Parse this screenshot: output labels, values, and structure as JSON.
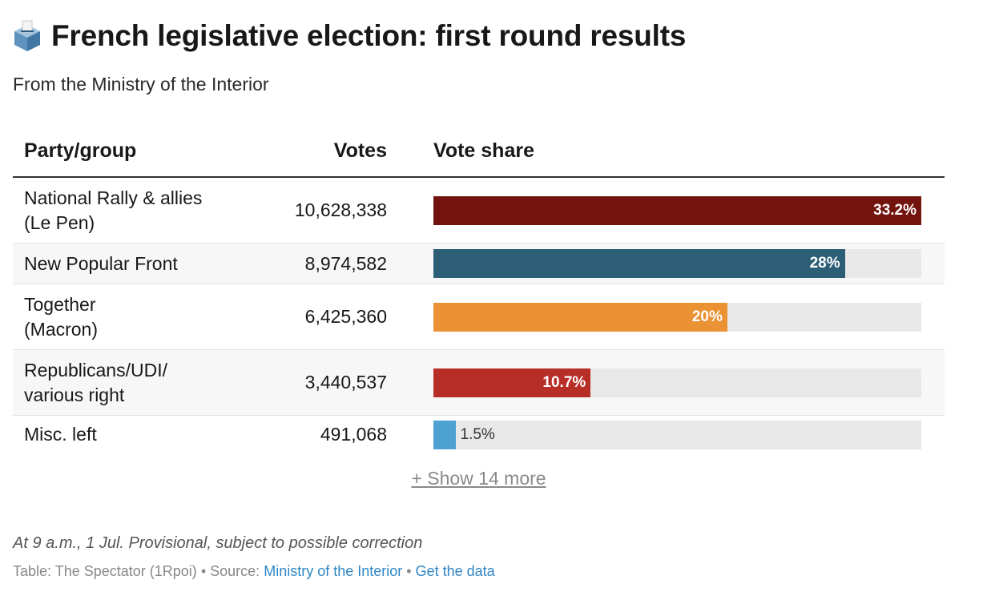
{
  "header": {
    "title": "French legislative election: first round results",
    "subtitle": "From the Ministry of the Interior",
    "icon": "ballot-box-icon"
  },
  "table": {
    "columns": [
      "Party/group",
      "Votes",
      "Vote share"
    ]
  },
  "chart_data": {
    "type": "bar",
    "title": "French legislative election: first round results",
    "subtitle": "From the Ministry of the Interior",
    "xlim": [
      0,
      33.2
    ],
    "categories": [
      "National Rally & allies (Le Pen)",
      "New Popular Front",
      "Together (Macron)",
      "Republicans/UDI/ various right",
      "Misc. left"
    ],
    "rows": [
      {
        "party_lines": [
          "National Rally & allies",
          "(Le Pen)"
        ],
        "votes": "10,628,338",
        "share": 33.2,
        "share_label": "33.2%",
        "color": "#73130e"
      },
      {
        "party_lines": [
          "New Popular Front"
        ],
        "votes": "8,974,582",
        "share": 28,
        "share_label": "28%",
        "color": "#2c5f76"
      },
      {
        "party_lines": [
          "Together",
          "(Macron)"
        ],
        "votes": "6,425,360",
        "share": 20,
        "share_label": "20%",
        "color": "#ea9234"
      },
      {
        "party_lines": [
          "Republicans/UDI/",
          "various right"
        ],
        "votes": "3,440,537",
        "share": 10.7,
        "share_label": "10.7%",
        "color": "#b72e27"
      },
      {
        "party_lines": [
          "Misc. left"
        ],
        "votes": "491,068",
        "share": 1.5,
        "share_label": "1.5%",
        "color": "#4da2d2"
      }
    ]
  },
  "show_more": "+ Show 14 more",
  "footer": {
    "note": "At 9 a.m., 1 Jul. Provisional, subject to possible correction",
    "table_credit": "Table: The Spectator (1Rpoi)",
    "source_prefix": "Source:",
    "source_link": "Ministry of the Interior",
    "separator": "•",
    "get_data": "Get the data"
  },
  "colors": {
    "link": "#2f86c4",
    "track": "#e8e8e8"
  }
}
